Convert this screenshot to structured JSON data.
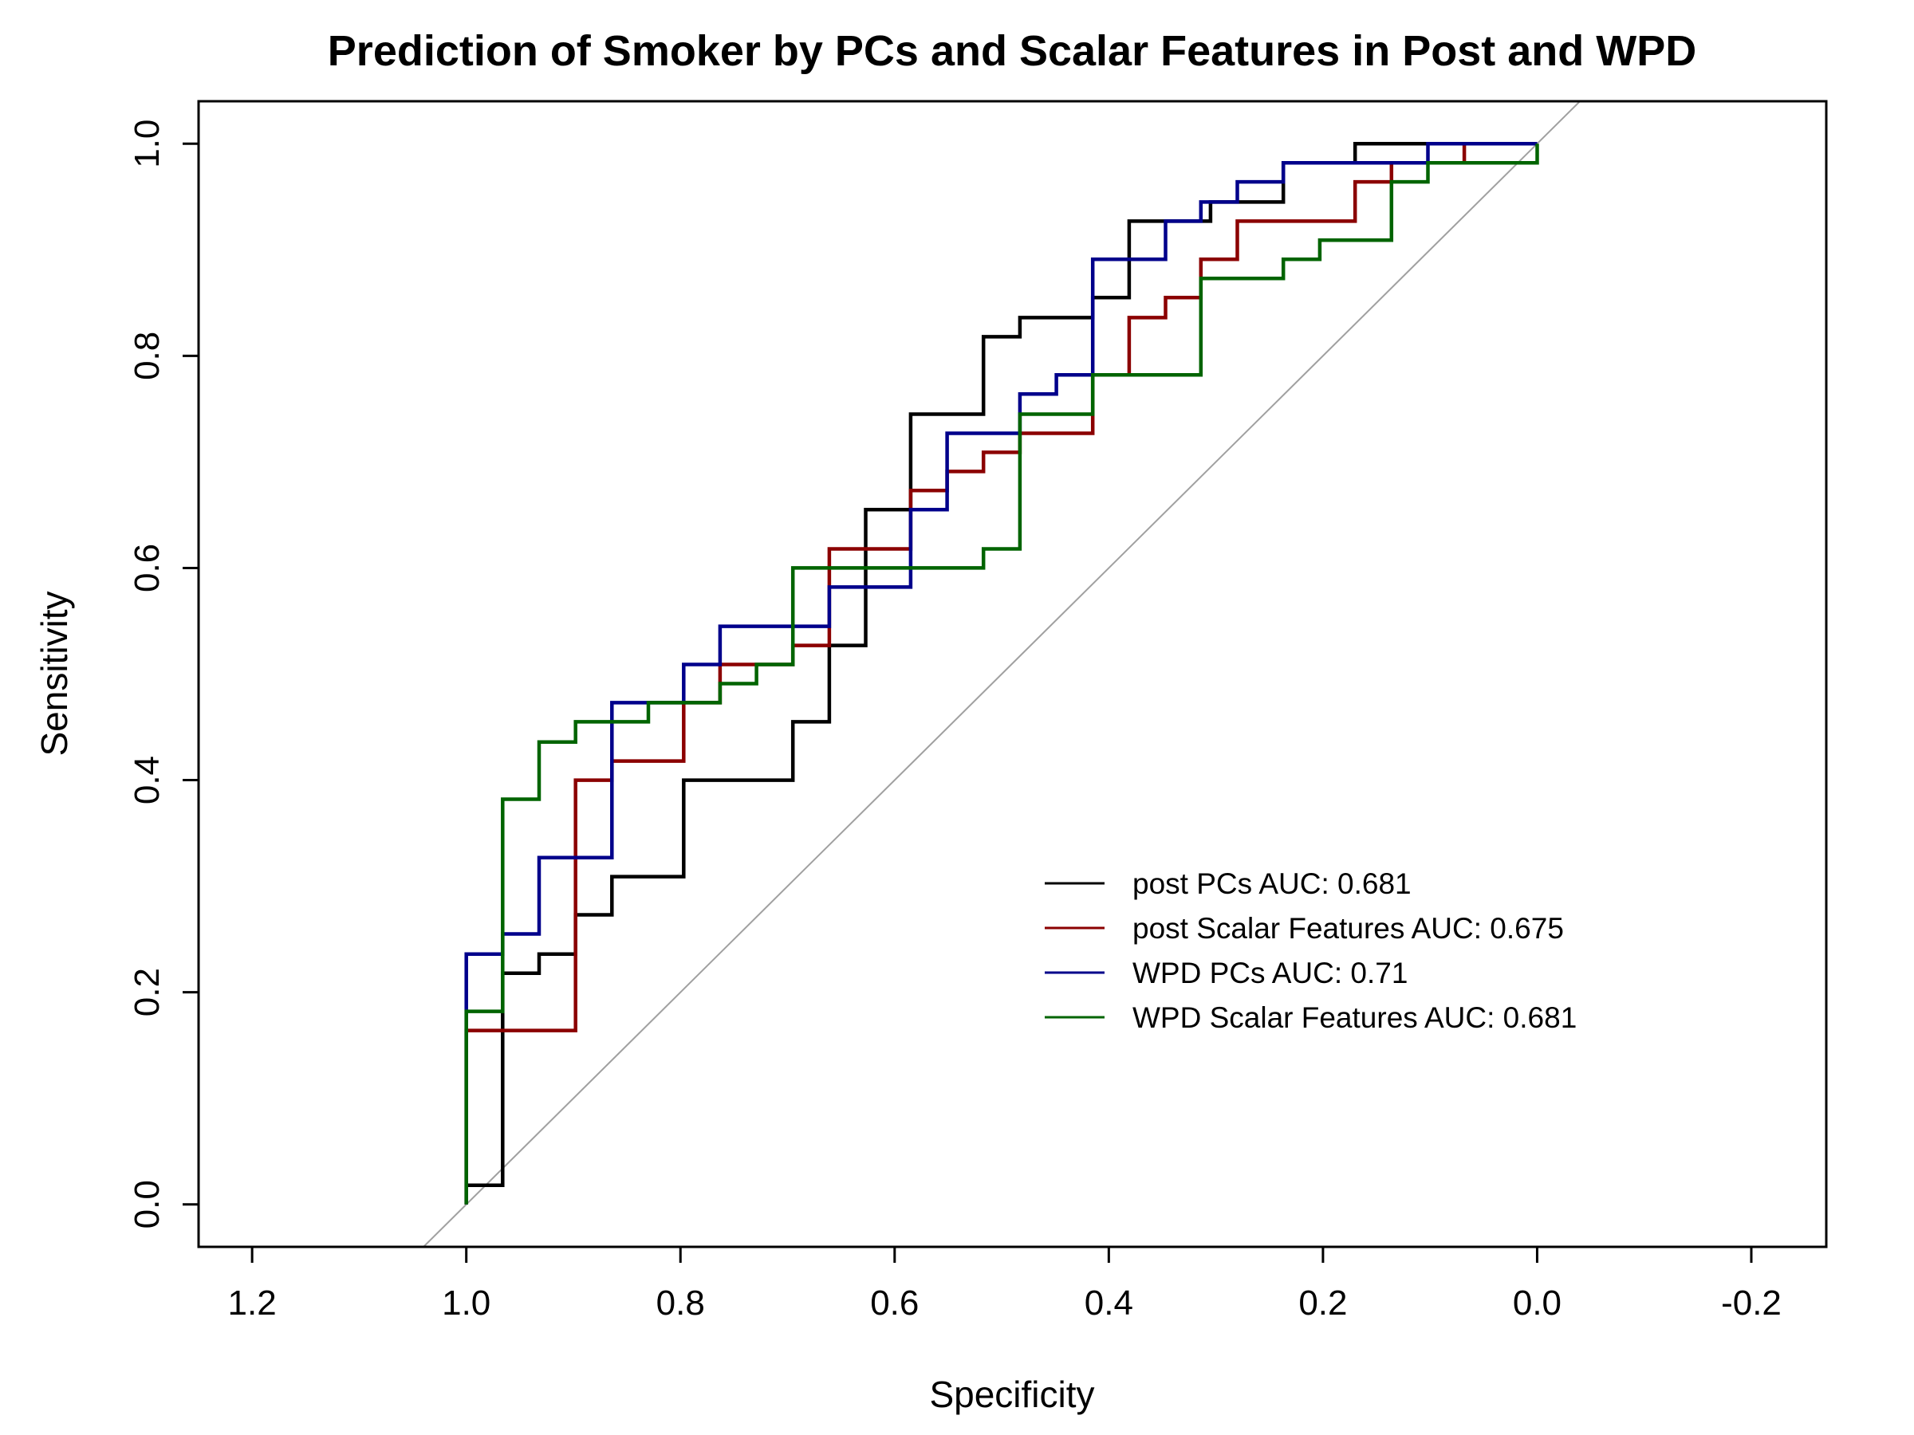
{
  "chart_data": {
    "type": "line",
    "title": "Prediction of Smoker by PCs and Scalar Features in Post and WPD",
    "xlabel": "Specificity",
    "ylabel": "Sensitivity",
    "xlim": [
      1.25,
      -0.27
    ],
    "x_reversed": true,
    "ylim": [
      -0.04,
      1.04
    ],
    "x_ticks": [
      1.2,
      1.0,
      0.8,
      0.6,
      0.4,
      0.2,
      0.0,
      -0.2
    ],
    "x_tick_labels": [
      "1.2",
      "1.0",
      "0.8",
      "0.6",
      "0.4",
      "0.2",
      "0.0",
      "-0.2"
    ],
    "y_ticks": [
      0.0,
      0.2,
      0.4,
      0.6,
      0.8,
      1.0
    ],
    "y_tick_labels": [
      "0.0",
      "0.2",
      "0.4",
      "0.6",
      "0.8",
      "1.0"
    ],
    "grid": false,
    "legend_position": "bottom-right",
    "reference_line": {
      "type": "diagonal",
      "color": "#a0a0a0"
    },
    "series": [
      {
        "name": "post PCs AUC: 0.681",
        "color": "#000000",
        "x": [
          1.0,
          0.966,
          0.966,
          0.932,
          0.932,
          0.898,
          0.898,
          0.864,
          0.864,
          0.797,
          0.797,
          0.695,
          0.695,
          0.661,
          0.661,
          0.627,
          0.627,
          0.585,
          0.585,
          0.517,
          0.517,
          0.483,
          0.483,
          0.415,
          0.415,
          0.381,
          0.381,
          0.347,
          0.347,
          0.305,
          0.305,
          0.28,
          0.28,
          0.237,
          0.237,
          0.17,
          0.17,
          0.0
        ],
        "y": [
          0.018,
          0.018,
          0.218,
          0.218,
          0.236,
          0.236,
          0.273,
          0.273,
          0.309,
          0.309,
          0.4,
          0.4,
          0.455,
          0.455,
          0.527,
          0.527,
          0.655,
          0.655,
          0.745,
          0.745,
          0.818,
          0.818,
          0.836,
          0.836,
          0.855,
          0.855,
          0.927,
          0.927,
          0.927,
          0.927,
          0.945,
          0.945,
          0.945,
          0.945,
          0.982,
          0.982,
          1.0,
          1.0
        ]
      },
      {
        "name": "post Scalar Features AUC: 0.675",
        "color": "#8b0000",
        "x": [
          1.0,
          1.0,
          0.898,
          0.898,
          0.864,
          0.864,
          0.797,
          0.797,
          0.763,
          0.763,
          0.695,
          0.695,
          0.661,
          0.661,
          0.585,
          0.585,
          0.551,
          0.551,
          0.517,
          0.517,
          0.483,
          0.483,
          0.415,
          0.415,
          0.381,
          0.381,
          0.347,
          0.347,
          0.314,
          0.314,
          0.28,
          0.28,
          0.17,
          0.17,
          0.136,
          0.136,
          0.068,
          0.068,
          0.0
        ],
        "y": [
          0.0,
          0.164,
          0.164,
          0.4,
          0.4,
          0.418,
          0.418,
          0.473,
          0.473,
          0.509,
          0.509,
          0.527,
          0.527,
          0.618,
          0.618,
          0.673,
          0.673,
          0.691,
          0.691,
          0.709,
          0.709,
          0.727,
          0.727,
          0.782,
          0.782,
          0.836,
          0.836,
          0.855,
          0.855,
          0.891,
          0.891,
          0.927,
          0.927,
          0.964,
          0.964,
          0.982,
          0.982,
          1.0,
          1.0
        ]
      },
      {
        "name": "WPD PCs AUC: 0.71",
        "color": "#00008b",
        "x": [
          1.0,
          1.0,
          0.966,
          0.966,
          0.932,
          0.932,
          0.864,
          0.864,
          0.797,
          0.797,
          0.763,
          0.763,
          0.661,
          0.661,
          0.585,
          0.585,
          0.551,
          0.551,
          0.483,
          0.483,
          0.449,
          0.449,
          0.415,
          0.415,
          0.347,
          0.347,
          0.314,
          0.314,
          0.28,
          0.28,
          0.237,
          0.237,
          0.102,
          0.102,
          0.0
        ],
        "y": [
          0.0,
          0.236,
          0.236,
          0.255,
          0.255,
          0.327,
          0.327,
          0.473,
          0.473,
          0.509,
          0.509,
          0.545,
          0.545,
          0.582,
          0.582,
          0.655,
          0.655,
          0.727,
          0.727,
          0.764,
          0.764,
          0.782,
          0.782,
          0.891,
          0.891,
          0.927,
          0.927,
          0.945,
          0.945,
          0.964,
          0.964,
          0.982,
          0.982,
          1.0,
          1.0
        ]
      },
      {
        "name": "WPD Scalar Features AUC: 0.681",
        "color": "#006400",
        "x": [
          1.0,
          1.0,
          0.966,
          0.966,
          0.932,
          0.932,
          0.898,
          0.898,
          0.83,
          0.83,
          0.763,
          0.763,
          0.729,
          0.729,
          0.695,
          0.695,
          0.517,
          0.517,
          0.483,
          0.483,
          0.415,
          0.415,
          0.314,
          0.314,
          0.237,
          0.237,
          0.203,
          0.203,
          0.136,
          0.136,
          0.102,
          0.102,
          0.0,
          0.0
        ],
        "y": [
          0.0,
          0.182,
          0.182,
          0.382,
          0.382,
          0.436,
          0.436,
          0.455,
          0.455,
          0.473,
          0.473,
          0.491,
          0.491,
          0.509,
          0.509,
          0.6,
          0.6,
          0.618,
          0.618,
          0.745,
          0.745,
          0.782,
          0.782,
          0.873,
          0.873,
          0.891,
          0.891,
          0.909,
          0.909,
          0.964,
          0.964,
          0.982,
          0.982,
          1.0
        ]
      }
    ]
  }
}
